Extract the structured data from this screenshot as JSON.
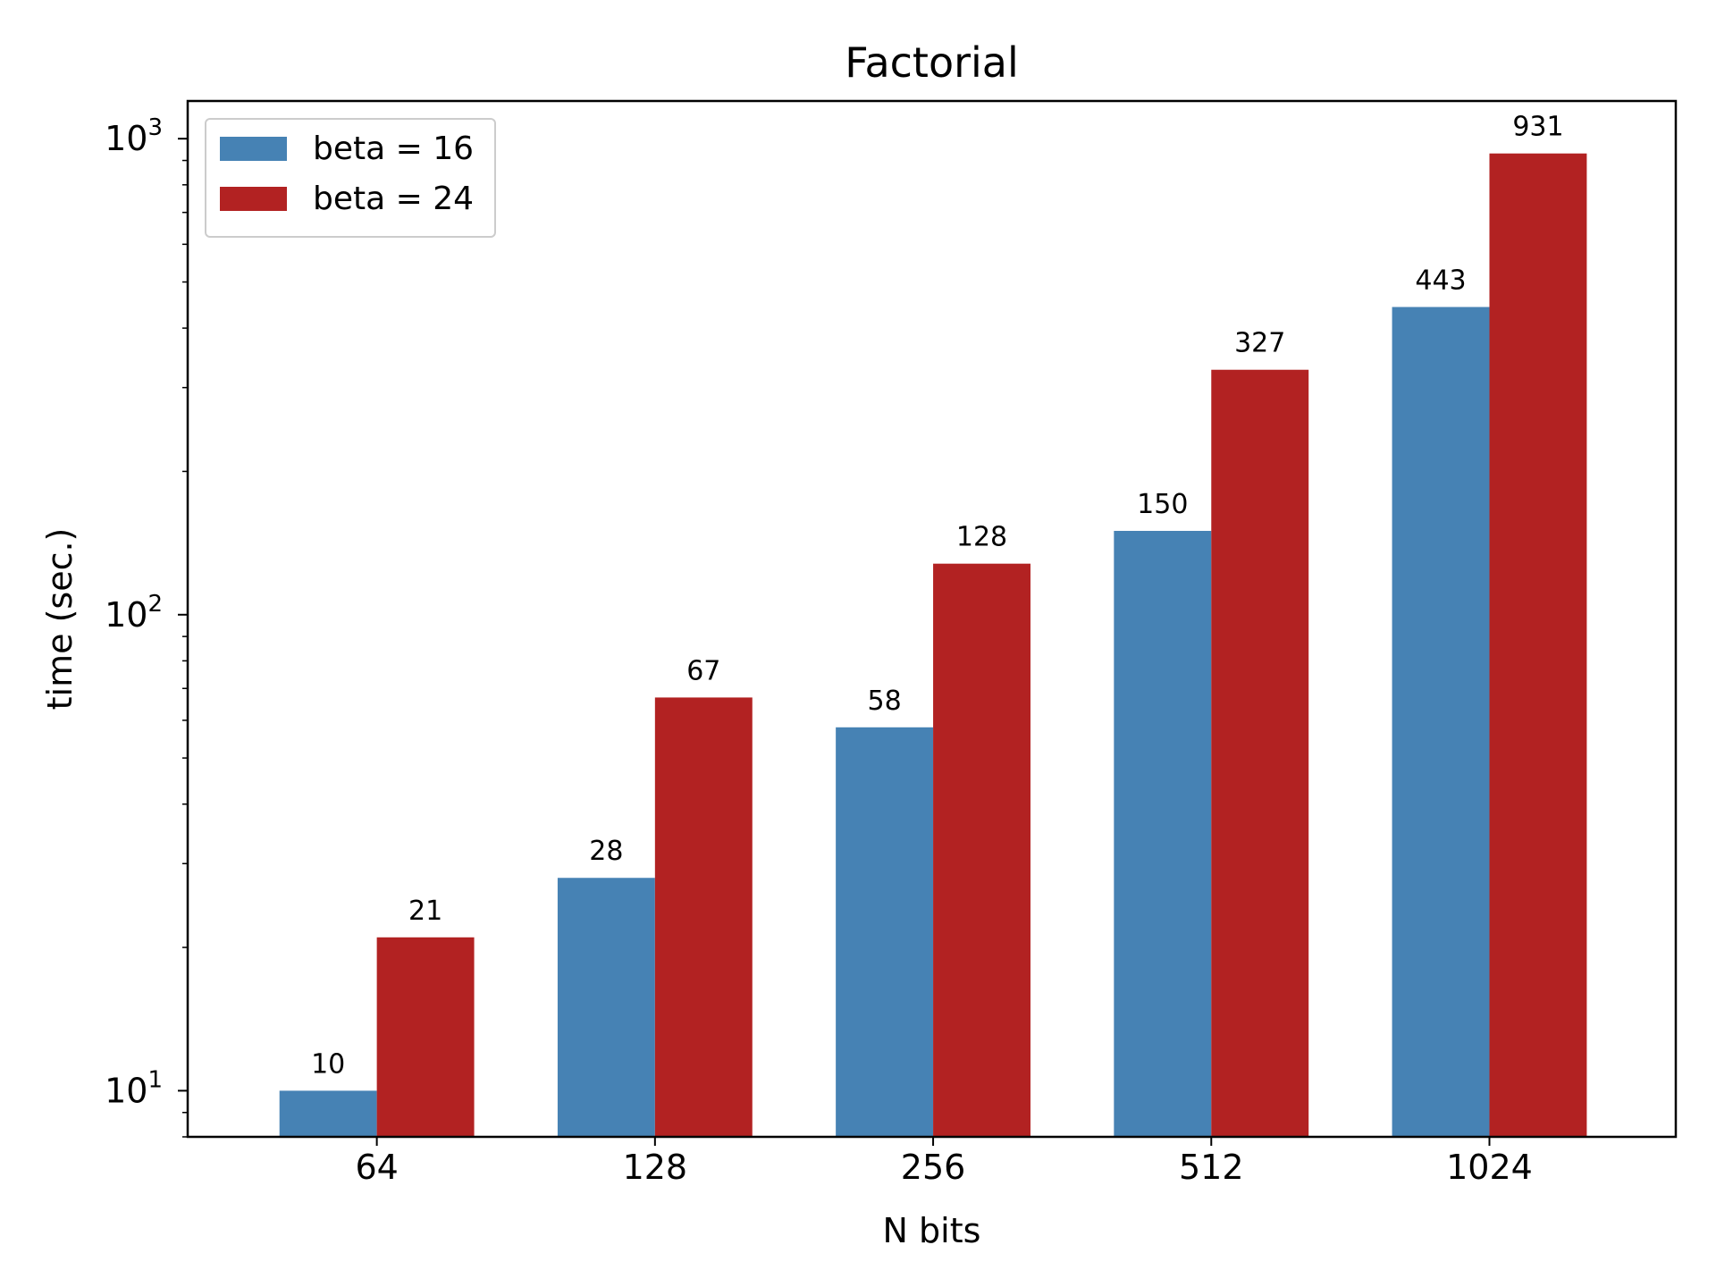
{
  "chart_data": {
    "type": "bar",
    "title": "Factorial",
    "xlabel": "N bits",
    "ylabel": "time (sec.)",
    "categories": [
      "64",
      "128",
      "256",
      "512",
      "1024"
    ],
    "series": [
      {
        "name": "beta = 16",
        "color": "#4682b4",
        "values": [
          10,
          28,
          58,
          150,
          443
        ]
      },
      {
        "name": "beta = 24",
        "color": "#b22222",
        "values": [
          21,
          67,
          128,
          327,
          931
        ]
      }
    ],
    "y_scale": "log",
    "ylim": [
      8,
      1200
    ],
    "y_ticks": [
      {
        "value": 10,
        "base": "10",
        "exp": "1"
      },
      {
        "value": 100,
        "base": "10",
        "exp": "2"
      },
      {
        "value": 1000,
        "base": "10",
        "exp": "3"
      }
    ],
    "grid": false,
    "legend_position": "top-left"
  }
}
